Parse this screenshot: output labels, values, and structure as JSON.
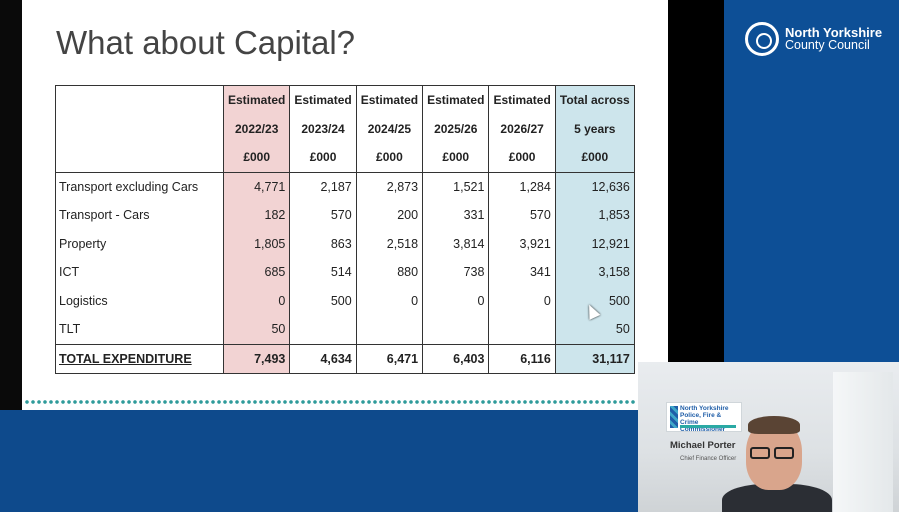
{
  "slide": {
    "title": "What about Capital?",
    "header": {
      "row1": [
        "",
        "Estimated",
        "Estimated",
        "Estimated",
        "Estimated",
        "Estimated",
        "Total across"
      ],
      "row2": [
        "",
        "2022/23",
        "2023/24",
        "2024/25",
        "2025/26",
        "2026/27",
        "5 years"
      ],
      "row3": [
        "",
        "£000",
        "£000",
        "£000",
        "£000",
        "£000",
        "£000"
      ]
    },
    "rows": [
      {
        "label": "Transport excluding Cars",
        "values": [
          "4,771",
          "2,187",
          "2,873",
          "1,521",
          "1,284",
          "12,636"
        ]
      },
      {
        "label": "Transport - Cars",
        "values": [
          "182",
          "570",
          "200",
          "331",
          "570",
          "1,853"
        ]
      },
      {
        "label": "Property",
        "values": [
          "1,805",
          "863",
          "2,518",
          "3,814",
          "3,921",
          "12,921"
        ]
      },
      {
        "label": "ICT",
        "values": [
          "685",
          "514",
          "880",
          "738",
          "341",
          "3,158"
        ]
      },
      {
        "label": "Logistics",
        "values": [
          "0",
          "500",
          "0",
          "0",
          "0",
          "500"
        ]
      },
      {
        "label": "TLT",
        "values": [
          "50",
          "",
          "",
          "",
          "",
          "50"
        ]
      }
    ],
    "total": {
      "label": "TOTAL EXPENDITURE",
      "values": [
        "7,493",
        "4,634",
        "6,471",
        "6,403",
        "6,116",
        "31,117"
      ]
    }
  },
  "logo": {
    "line1": "North Yorkshire",
    "line2": "County Council"
  },
  "video": {
    "org_text": "North Yorkshire Police, Fire & Crime Commissioner",
    "name": "Michael Porter",
    "role": "Chief Finance Officer"
  },
  "colors": {
    "year1_col": "#f2d3d3",
    "total_col": "#cde5ec",
    "brand_blue": "#0d4f96",
    "dots_teal": "#2f9b9a"
  }
}
